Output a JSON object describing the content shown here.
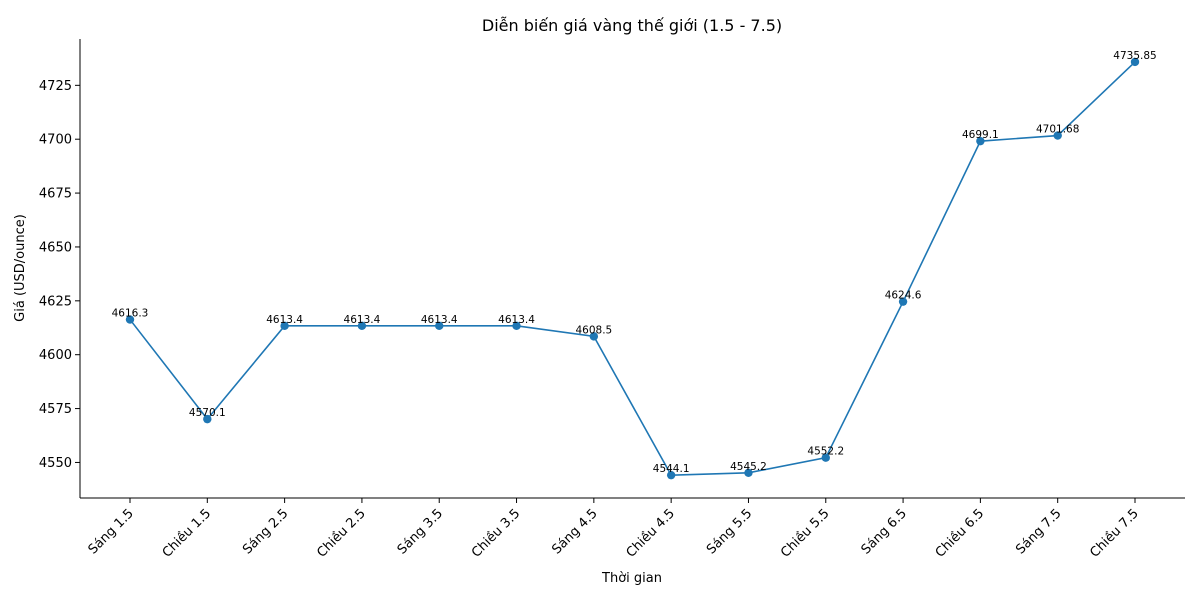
{
  "chart_data": {
    "type": "line",
    "title": "Diễn biến giá vàng thế giới (1.5 - 7.5)",
    "xlabel": "Thời gian",
    "ylabel": "Giá (USD/ounce)",
    "categories": [
      "Sáng 1.5",
      "Chiều 1.5",
      "Sáng 2.5",
      "Chiều 2.5",
      "Sáng 3.5",
      "Chiều 3.5",
      "Sáng 4.5",
      "Chiều 4.5",
      "Sáng 5.5",
      "Chiều 5.5",
      "Sáng 6.5",
      "Chiều 6.5",
      "Sáng 7.5",
      "Chiều 7.5"
    ],
    "values": [
      4616.3,
      4570.1,
      4613.4,
      4613.4,
      4613.4,
      4613.4,
      4608.5,
      4544.1,
      4545.2,
      4552.2,
      4624.6,
      4699.1,
      4701.68,
      4735.85
    ],
    "data_labels": [
      "4616.3",
      "4570.1",
      "4613.4",
      "4613.4",
      "4613.4",
      "4613.4",
      "4608.5",
      "4544.1",
      "4545.2",
      "4552.2",
      "4624.6",
      "4699.1",
      "4701.68",
      "4735.85"
    ],
    "ylim": [
      4533.5,
      4746.5
    ],
    "yticks": [
      4550,
      4575,
      4600,
      4625,
      4650,
      4675,
      4700,
      4725
    ],
    "grid": false,
    "legend": "none",
    "color": "#1f77b4"
  }
}
